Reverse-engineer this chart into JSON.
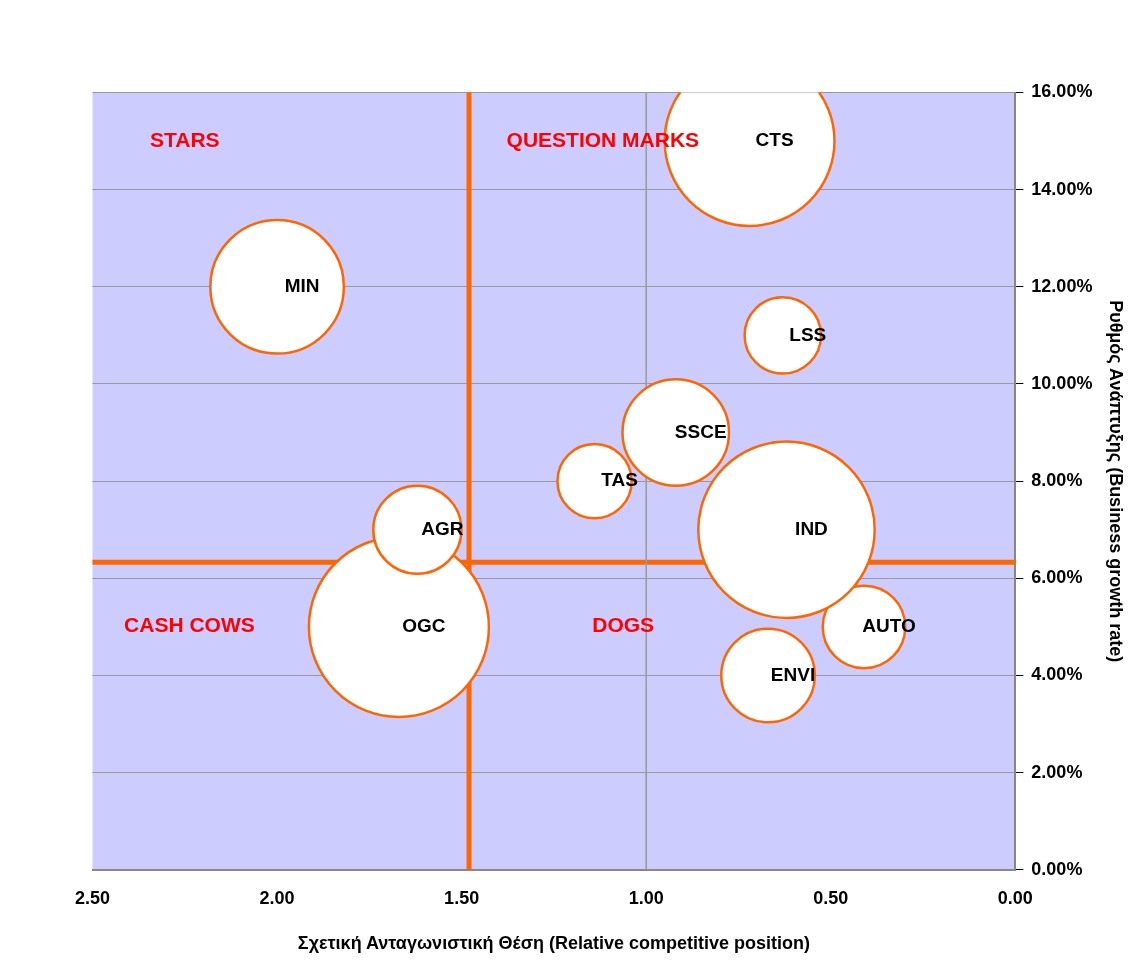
{
  "chart_data": {
    "type": "bubble",
    "xlabel": "Σχετική Ανταγωνιστική Θέση (Relative competitive position)",
    "ylabel": "Ρυθμός Ανάπτυξης (Business growth rate)",
    "xlim": [
      2.5,
      0
    ],
    "xticks": [
      {
        "value": 2.5,
        "label": "2.50"
      },
      {
        "value": 2,
        "label": "2.00"
      },
      {
        "value": 1.5,
        "label": "1.50"
      },
      {
        "value": 1,
        "label": "1.00"
      },
      {
        "value": 0.5,
        "label": "0.50"
      },
      {
        "value": 0,
        "label": "0.00"
      }
    ],
    "ylim": [
      0,
      16
    ],
    "yticks": [
      {
        "value": 0,
        "label": "0.00%"
      },
      {
        "value": 2,
        "label": "2.00%"
      },
      {
        "value": 4,
        "label": "4.00%"
      },
      {
        "value": 6,
        "label": "6.00%"
      },
      {
        "value": 8,
        "label": "8.00%"
      },
      {
        "value": 10,
        "label": "10.00%"
      },
      {
        "value": 12,
        "label": "12.00%"
      },
      {
        "value": 14,
        "label": "14.00%"
      },
      {
        "value": 16,
        "label": "16.00%"
      }
    ],
    "grid": "y",
    "legend": false,
    "series": [
      {
        "name": "CTS",
        "color": "#ff6600",
        "x": [
          0.72
        ],
        "values": [
          15
        ],
        "sizes": [
          0.89
        ]
      },
      {
        "name": "MIN",
        "color": "#ff6600",
        "x": [
          2.0
        ],
        "values": [
          12
        ],
        "sizes": [
          0.55
        ]
      },
      {
        "name": "LSS",
        "color": "#ff6600",
        "x": [
          0.63
        ],
        "values": [
          11
        ],
        "sizes": [
          0.18
        ]
      },
      {
        "name": "SSCE",
        "color": "#ff6600",
        "x": [
          0.92
        ],
        "values": [
          9
        ],
        "sizes": [
          0.35
        ]
      },
      {
        "name": "TAS",
        "color": "#ff6600",
        "x": [
          1.14
        ],
        "values": [
          8
        ],
        "sizes": [
          0.17
        ]
      },
      {
        "name": "IND",
        "color": "#ff6600",
        "x": [
          0.62
        ],
        "values": [
          7
        ],
        "sizes": [
          0.96
        ]
      },
      {
        "name": "AGR",
        "color": "#ff6600",
        "x": [
          1.62
        ],
        "values": [
          7
        ],
        "sizes": [
          0.24
        ]
      },
      {
        "name": "OGC",
        "color": "#ff6600",
        "x": [
          1.67
        ],
        "values": [
          5
        ],
        "sizes": [
          1
        ]
      },
      {
        "name": "AUTO",
        "color": "#ff6600",
        "x": [
          0.41
        ],
        "values": [
          5
        ],
        "sizes": [
          0.21
        ]
      },
      {
        "name": "ENVI",
        "color": "#ff6600",
        "x": [
          0.67
        ],
        "values": [
          4
        ],
        "sizes": [
          0.27
        ]
      }
    ],
    "ref_lines": [
      {
        "axis": "x",
        "value": 1.48,
        "color": "#ff6600"
      },
      {
        "axis": "y",
        "value": 6.33,
        "color": "#ff6600"
      },
      {
        "axis": "x",
        "value": 1.0,
        "color": "#999999"
      }
    ],
    "annotations": [
      "STARS",
      "QUESTION MARKS",
      "CASH COWS",
      "DOGS"
    ]
  }
}
